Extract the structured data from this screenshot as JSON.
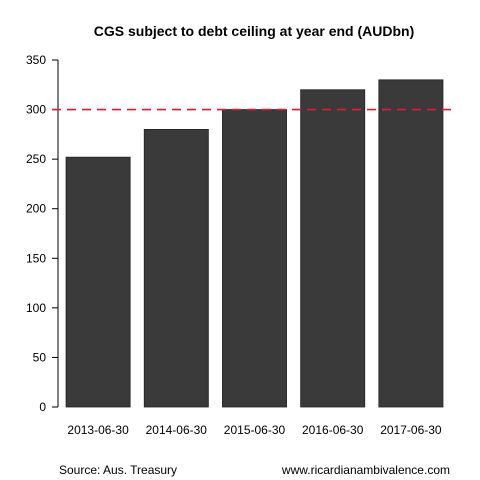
{
  "chart_data": {
    "type": "bar",
    "title": "CGS subject to debt ceiling at year end (AUDbn)",
    "categories": [
      "2013-06-30",
      "2014-06-30",
      "2015-06-30",
      "2016-06-30",
      "2017-06-30"
    ],
    "values": [
      252,
      280,
      300,
      320,
      330
    ],
    "ylim": [
      0,
      350
    ],
    "yticks": [
      0,
      50,
      100,
      150,
      200,
      250,
      300,
      350
    ],
    "xlabel": "",
    "ylabel": "",
    "grid": false,
    "reference_line": {
      "value": 300,
      "style": "dashed"
    },
    "colors": {
      "bar": "#3a3a3a",
      "reference_line": "#e8192c"
    }
  },
  "footer": {
    "source": "Source: Aus. Treasury",
    "site": "www.ricardianambivalence.com"
  }
}
